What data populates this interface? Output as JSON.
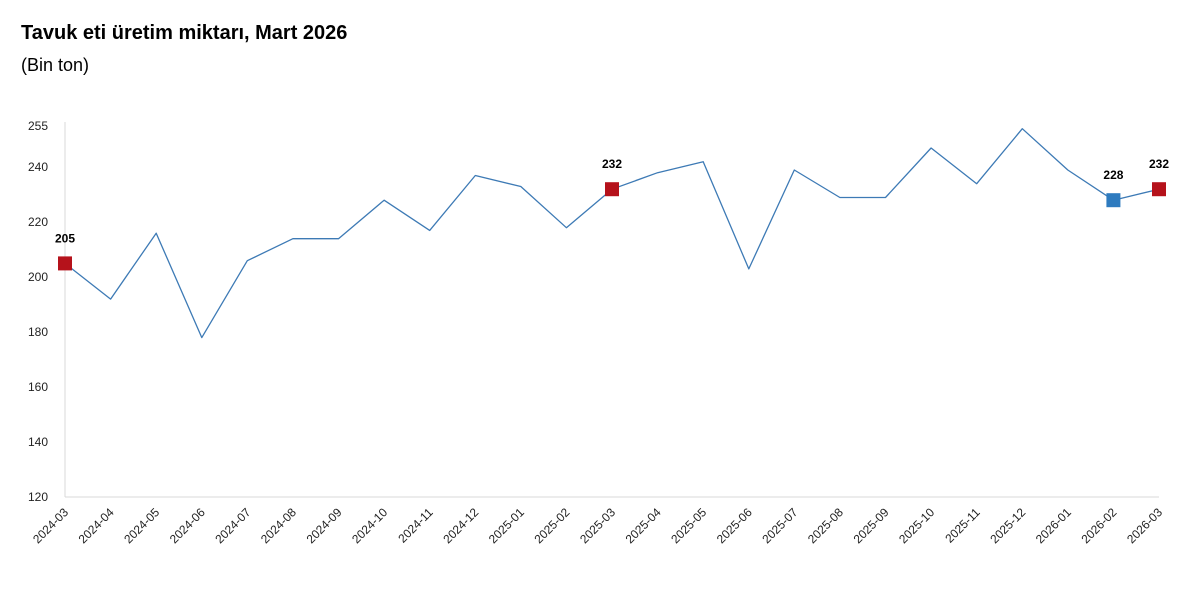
{
  "header": {
    "title": "Tavuk eti üretim miktarı, Mart 2026",
    "subtitle": "(Bin ton)"
  },
  "chart_data": {
    "type": "line",
    "title": "Tavuk eti üretim miktarı, Mart 2026",
    "subtitle": "(Bin ton)",
    "categories": [
      "2024-03",
      "2024-04",
      "2024-05",
      "2024-06",
      "2024-07",
      "2024-08",
      "2024-09",
      "2024-10",
      "2024-11",
      "2024-12",
      "2025-01",
      "2025-02",
      "2025-03",
      "2025-04",
      "2025-05",
      "2025-06",
      "2025-07",
      "2025-08",
      "2025-09",
      "2025-10",
      "2025-11",
      "2025-12",
      "2026-01",
      "2026-02",
      "2026-03"
    ],
    "series": [
      {
        "values": [
          205,
          192,
          216,
          178,
          206,
          214,
          214,
          228,
          217,
          237,
          233,
          218,
          232,
          238,
          242,
          203,
          239,
          229,
          229,
          247,
          234,
          254,
          239,
          228,
          232
        ],
        "color": "#3d7ab5"
      }
    ],
    "y_ticks": [
      120,
      140,
      160,
      180,
      200,
      220,
      240,
      255
    ],
    "ylim": [
      120,
      255
    ],
    "grid": false,
    "highlighted_points": [
      {
        "index": 0,
        "label": "205",
        "color": "#b5121b"
      },
      {
        "index": 12,
        "label": "232",
        "color": "#b5121b"
      },
      {
        "index": 23,
        "label": "228",
        "color": "#2e7bbf"
      },
      {
        "index": 24,
        "label": "232",
        "color": "#b5121b"
      }
    ],
    "axis_color": "#d9d9d9"
  }
}
